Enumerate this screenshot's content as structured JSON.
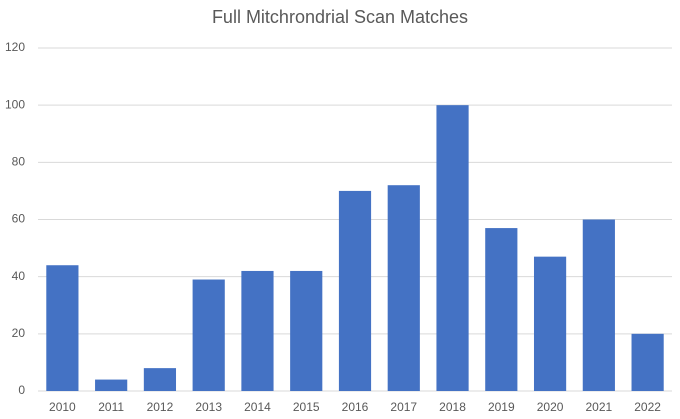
{
  "chart_data": {
    "type": "bar",
    "title": "Full Mitchrondrial Scan Matches",
    "categories": [
      "2010",
      "2011",
      "2012",
      "2013",
      "2014",
      "2015",
      "2016",
      "2017",
      "2018",
      "2019",
      "2020",
      "2021",
      "2022"
    ],
    "values": [
      44,
      4,
      8,
      39,
      42,
      42,
      70,
      72,
      100,
      57,
      47,
      60,
      20
    ],
    "color": "#4472c4",
    "ylim": [
      0,
      120
    ],
    "yticks": [
      0,
      20,
      40,
      60,
      80,
      100,
      120
    ],
    "grid": true
  }
}
